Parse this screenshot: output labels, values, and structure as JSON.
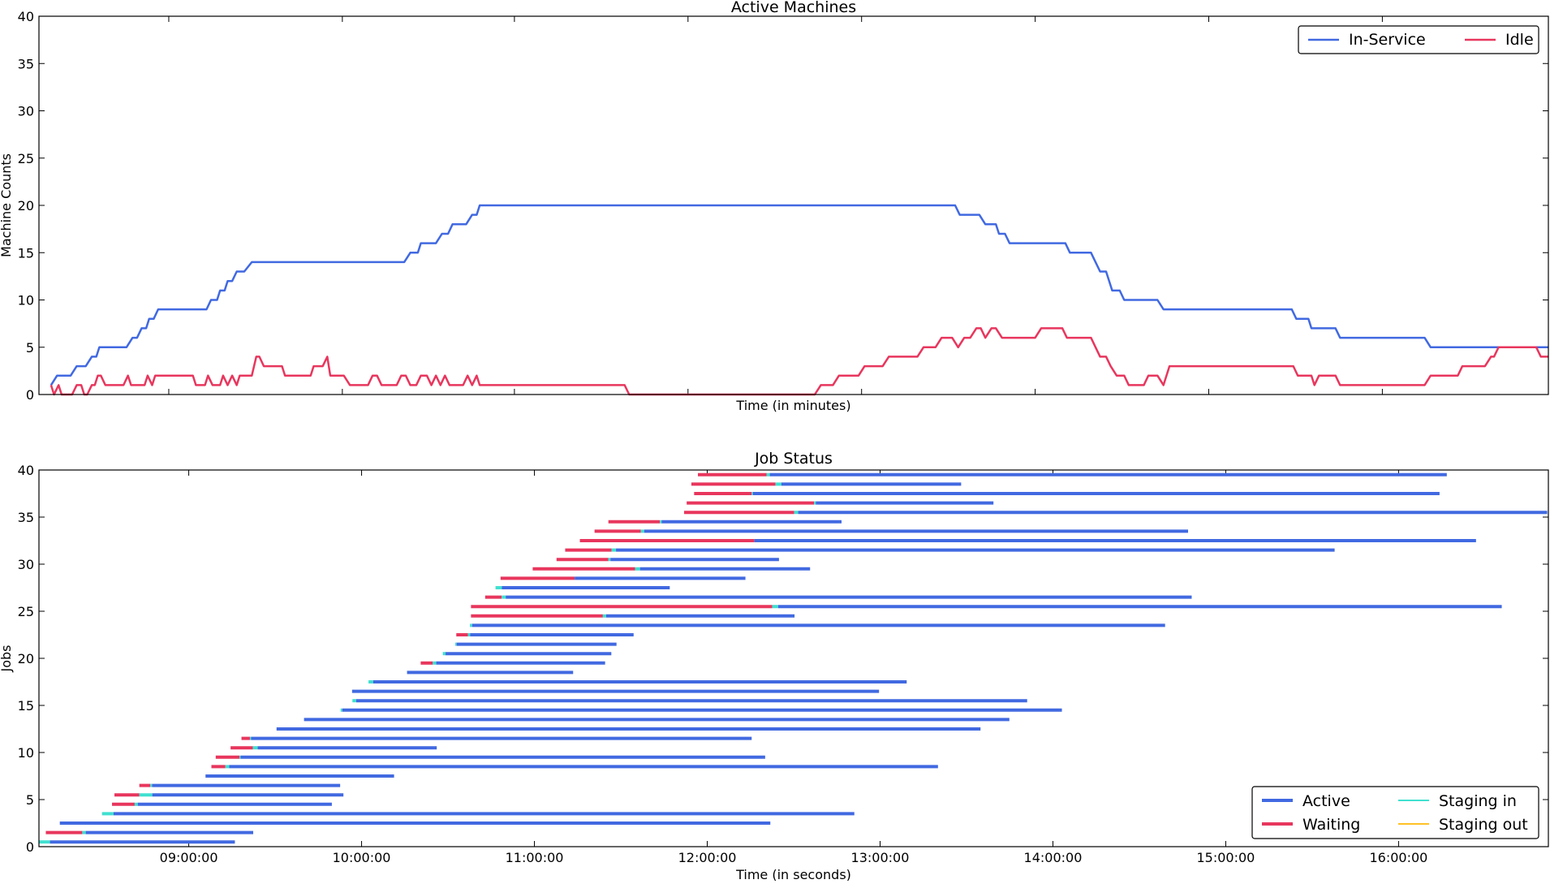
{
  "chart_data": [
    {
      "type": "line",
      "title": "Active Machines",
      "xlabel": "Time (in minutes)",
      "ylabel": "Machine Counts",
      "xlim": [
        0,
        1000
      ],
      "ylim": [
        0,
        40
      ],
      "yticks": [
        0,
        5,
        10,
        15,
        20,
        25,
        30,
        35,
        40
      ],
      "xtick_positions": [
        86,
        201,
        315,
        430,
        545,
        660,
        775,
        890
      ],
      "grid": false,
      "legend": {
        "position": "top-right",
        "columns": 2
      },
      "series": [
        {
          "name": "In-Service",
          "color": "#4169E1",
          "points": [
            [
              8,
              1
            ],
            [
              12,
              2
            ],
            [
              21,
              2
            ],
            [
              25,
              3
            ],
            [
              31,
              3
            ],
            [
              35,
              4
            ],
            [
              38,
              4
            ],
            [
              40,
              5
            ],
            [
              58,
              5
            ],
            [
              62,
              6
            ],
            [
              65,
              6
            ],
            [
              68,
              7
            ],
            [
              71,
              7
            ],
            [
              73,
              8
            ],
            [
              76,
              8
            ],
            [
              79,
              9
            ],
            [
              111,
              9
            ],
            [
              114,
              10
            ],
            [
              118,
              10
            ],
            [
              120,
              11
            ],
            [
              123,
              11
            ],
            [
              125,
              12
            ],
            [
              128,
              12
            ],
            [
              131,
              13
            ],
            [
              136,
              13
            ],
            [
              141,
              14
            ],
            [
              242,
              14
            ],
            [
              246,
              15
            ],
            [
              251,
              15
            ],
            [
              253,
              16
            ],
            [
              263,
              16
            ],
            [
              267,
              17
            ],
            [
              271,
              17
            ],
            [
              274,
              18
            ],
            [
              283,
              18
            ],
            [
              287,
              19
            ],
            [
              290,
              19
            ],
            [
              292,
              20
            ],
            [
              607,
              20
            ],
            [
              610,
              19
            ],
            [
              623,
              19
            ],
            [
              627,
              18
            ],
            [
              634,
              18
            ],
            [
              636,
              17
            ],
            [
              640,
              17
            ],
            [
              643,
              16
            ],
            [
              680,
              16
            ],
            [
              683,
              15
            ],
            [
              697,
              15
            ],
            [
              700,
              14
            ],
            [
              703,
              13
            ],
            [
              707,
              13
            ],
            [
              711,
              11
            ],
            [
              716,
              11
            ],
            [
              719,
              10
            ],
            [
              741,
              10
            ],
            [
              745,
              9
            ],
            [
              830,
              9
            ],
            [
              833,
              8
            ],
            [
              841,
              8
            ],
            [
              843,
              7
            ],
            [
              859,
              7
            ],
            [
              862,
              6
            ],
            [
              918,
              6
            ],
            [
              922,
              5
            ],
            [
              964,
              5
            ],
            [
              1000,
              5
            ]
          ]
        },
        {
          "name": "Idle",
          "color": "#E8365D",
          "points": [
            [
              8,
              1
            ],
            [
              10,
              0
            ],
            [
              13,
              1
            ],
            [
              15,
              0
            ],
            [
              22,
              0
            ],
            [
              25,
              1
            ],
            [
              28,
              1
            ],
            [
              30,
              0
            ],
            [
              32,
              0
            ],
            [
              35,
              1
            ],
            [
              37,
              1
            ],
            [
              39,
              2
            ],
            [
              41,
              2
            ],
            [
              44,
              1
            ],
            [
              56,
              1
            ],
            [
              59,
              2
            ],
            [
              61,
              1
            ],
            [
              70,
              1
            ],
            [
              72,
              2
            ],
            [
              75,
              1
            ],
            [
              77,
              2
            ],
            [
              94,
              2
            ],
            [
              102,
              2
            ],
            [
              104,
              1
            ],
            [
              110,
              1
            ],
            [
              112,
              2
            ],
            [
              115,
              1
            ],
            [
              120,
              1
            ],
            [
              122,
              2
            ],
            [
              125,
              1
            ],
            [
              128,
              2
            ],
            [
              131,
              1
            ],
            [
              133,
              2
            ],
            [
              141,
              2
            ],
            [
              144,
              4
            ],
            [
              146,
              4
            ],
            [
              149,
              3
            ],
            [
              161,
              3
            ],
            [
              163,
              2
            ],
            [
              180,
              2
            ],
            [
              182,
              3
            ],
            [
              188,
              3
            ],
            [
              191,
              4
            ],
            [
              193,
              2
            ],
            [
              202,
              2
            ],
            [
              206,
              1
            ],
            [
              218,
              1
            ],
            [
              221,
              2
            ],
            [
              224,
              2
            ],
            [
              227,
              1
            ],
            [
              237,
              1
            ],
            [
              240,
              2
            ],
            [
              243,
              2
            ],
            [
              246,
              1
            ],
            [
              250,
              1
            ],
            [
              253,
              2
            ],
            [
              257,
              2
            ],
            [
              260,
              1
            ],
            [
              263,
              2
            ],
            [
              266,
              1
            ],
            [
              269,
              2
            ],
            [
              272,
              1
            ],
            [
              281,
              1
            ],
            [
              284,
              2
            ],
            [
              287,
              1
            ],
            [
              290,
              2
            ],
            [
              292,
              1
            ],
            [
              388,
              1
            ],
            [
              391,
              0
            ],
            [
              514,
              0
            ],
            [
              518,
              1
            ],
            [
              526,
              1
            ],
            [
              530,
              2
            ],
            [
              543,
              2
            ],
            [
              547,
              3
            ],
            [
              559,
              3
            ],
            [
              563,
              4
            ],
            [
              582,
              4
            ],
            [
              586,
              5
            ],
            [
              594,
              5
            ],
            [
              598,
              6
            ],
            [
              605,
              6
            ],
            [
              609,
              5
            ],
            [
              613,
              6
            ],
            [
              617,
              6
            ],
            [
              621,
              7
            ],
            [
              624,
              7
            ],
            [
              627,
              6
            ],
            [
              631,
              7
            ],
            [
              634,
              7
            ],
            [
              638,
              6
            ],
            [
              660,
              6
            ],
            [
              664,
              7
            ],
            [
              678,
              7
            ],
            [
              681,
              6
            ],
            [
              697,
              6
            ],
            [
              700,
              5
            ],
            [
              703,
              4
            ],
            [
              707,
              4
            ],
            [
              710,
              3
            ],
            [
              714,
              2
            ],
            [
              719,
              2
            ],
            [
              722,
              1
            ],
            [
              732,
              1
            ],
            [
              735,
              2
            ],
            [
              741,
              2
            ],
            [
              745,
              1
            ],
            [
              749,
              3
            ],
            [
              831,
              3
            ],
            [
              834,
              2
            ],
            [
              843,
              2
            ],
            [
              845,
              1
            ],
            [
              848,
              2
            ],
            [
              859,
              2
            ],
            [
              862,
              1
            ],
            [
              918,
              1
            ],
            [
              922,
              2
            ],
            [
              940,
              2
            ],
            [
              943,
              3
            ],
            [
              958,
              3
            ],
            [
              962,
              4
            ],
            [
              964,
              4
            ],
            [
              967,
              5
            ],
            [
              992,
              5
            ],
            [
              995,
              4
            ],
            [
              1000,
              4
            ]
          ]
        }
      ]
    },
    {
      "type": "gantt",
      "title": "Job Status",
      "xlabel": "Time (in seconds)",
      "ylabel": "Jobs",
      "xlim": [
        8.1333,
        16.8667
      ],
      "ylim": [
        0,
        40
      ],
      "yticks": [
        0,
        5,
        10,
        15,
        20,
        25,
        30,
        35,
        40
      ],
      "xticks": [
        "09:00:00",
        "10:00:00",
        "11:00:00",
        "12:00:00",
        "13:00:00",
        "14:00:00",
        "15:00:00",
        "16:00:00"
      ],
      "xtick_hours": [
        9,
        10,
        11,
        12,
        13,
        14,
        15,
        16
      ],
      "grid": false,
      "legend": {
        "position": "bottom-right",
        "columns": 2
      },
      "status_colors": {
        "Active": "#4169E1",
        "Waiting": "#E8365D",
        "Staging in": "#40E0D0",
        "Staging out": "#FFC125"
      },
      "legend_entries": [
        "Active",
        "Waiting",
        "Staging in",
        "Staging out"
      ],
      "note": "job segments as [job, waiting_start, staging_start, active_start, end] in hours of day",
      "jobs": [
        [
          0,
          8.133,
          8.133,
          8.197,
          9.267
        ],
        [
          1,
          8.173,
          8.384,
          8.404,
          9.373
        ],
        [
          2,
          8.254,
          8.254,
          8.254,
          12.365
        ],
        [
          3,
          8.498,
          8.498,
          8.565,
          12.851
        ],
        [
          4,
          8.556,
          8.687,
          8.705,
          9.828
        ],
        [
          5,
          8.57,
          8.714,
          8.789,
          9.895
        ],
        [
          6,
          8.714,
          8.778,
          8.788,
          9.876
        ],
        [
          7,
          9.097,
          9.097,
          9.097,
          10.188
        ],
        [
          8,
          9.131,
          9.212,
          9.234,
          13.335
        ],
        [
          9,
          9.156,
          9.293,
          9.3,
          12.335
        ],
        [
          10,
          9.242,
          9.371,
          9.399,
          10.435
        ],
        [
          11,
          9.305,
          9.354,
          9.361,
          12.257
        ],
        [
          12,
          9.508,
          9.508,
          9.508,
          13.581
        ],
        [
          13,
          9.667,
          9.667,
          9.667,
          13.748
        ],
        [
          14,
          9.879,
          9.879,
          9.889,
          14.052
        ],
        [
          15,
          9.947,
          9.947,
          9.969,
          13.851
        ],
        [
          16,
          9.945,
          9.945,
          9.945,
          12.994
        ],
        [
          17,
          10.04,
          10.04,
          10.067,
          13.154
        ],
        [
          18,
          10.263,
          10.263,
          10.263,
          11.224
        ],
        [
          19,
          10.342,
          10.412,
          10.432,
          11.409
        ],
        [
          20,
          10.47,
          10.47,
          10.486,
          11.445
        ],
        [
          21,
          10.542,
          10.542,
          10.55,
          11.475
        ],
        [
          22,
          10.548,
          10.615,
          10.628,
          11.574
        ],
        [
          23,
          10.627,
          10.627,
          10.64,
          14.649
        ],
        [
          24,
          10.633,
          11.396,
          11.415,
          12.505
        ],
        [
          25,
          10.633,
          12.376,
          12.41,
          16.597
        ],
        [
          26,
          10.715,
          10.81,
          10.834,
          14.803
        ],
        [
          27,
          10.775,
          10.775,
          10.812,
          11.783
        ],
        [
          28,
          10.804,
          11.233,
          11.233,
          12.221
        ],
        [
          29,
          10.99,
          11.582,
          11.611,
          12.595
        ],
        [
          30,
          11.128,
          11.428,
          11.44,
          12.415
        ],
        [
          31,
          11.178,
          11.446,
          11.472,
          15.63
        ],
        [
          32,
          11.263,
          12.273,
          12.273,
          16.448
        ],
        [
          33,
          11.348,
          11.616,
          11.635,
          14.782
        ],
        [
          34,
          11.428,
          11.726,
          11.736,
          12.777
        ],
        [
          35,
          11.866,
          12.503,
          12.526,
          16.86
        ],
        [
          36,
          11.881,
          12.618,
          12.628,
          13.656
        ],
        [
          37,
          11.924,
          12.257,
          12.264,
          16.237
        ],
        [
          38,
          11.908,
          12.395,
          12.429,
          13.469
        ],
        [
          39,
          11.946,
          12.344,
          12.362,
          16.279
        ]
      ]
    }
  ]
}
